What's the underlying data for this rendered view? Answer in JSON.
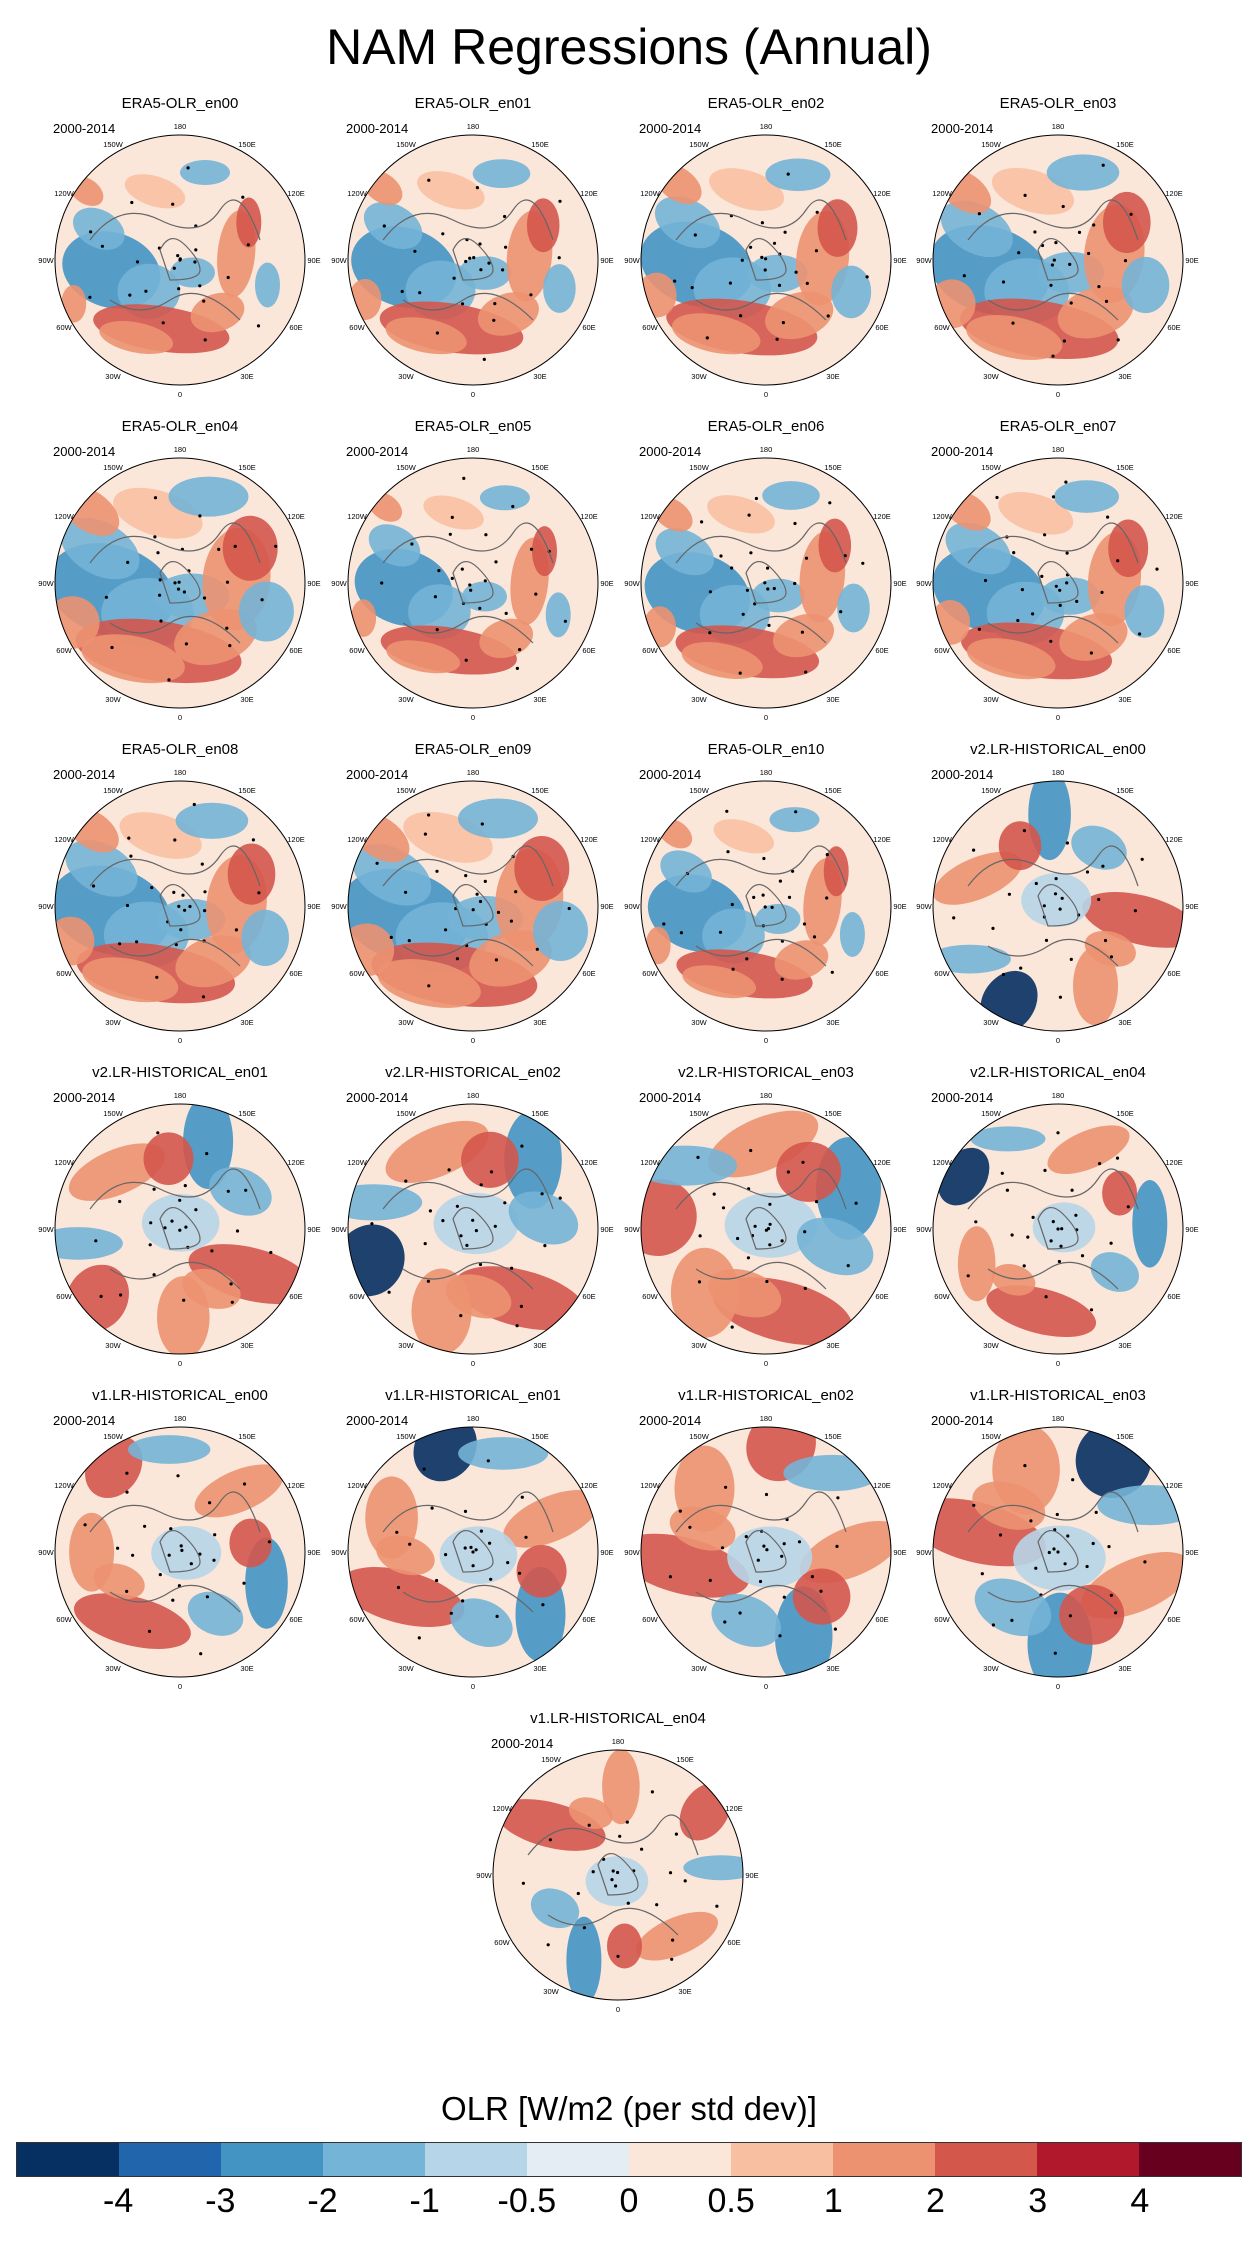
{
  "figure_title": "NAM Regressions (Annual)",
  "colorbar": {
    "title": "OLR [W/m2 (per std dev)]",
    "colors": [
      "#053061",
      "#2166ac",
      "#4393c3",
      "#74b4d6",
      "#b7d5e8",
      "#e3edf3",
      "#fbe6da",
      "#f8c0a1",
      "#ec9271",
      "#d4574c",
      "#b2182b",
      "#67001f"
    ],
    "ticks": [
      "-4",
      "-3",
      "-2",
      "-1",
      "-0.5",
      "0",
      "0.5",
      "1",
      "2",
      "3",
      "4"
    ]
  },
  "map_labels": {
    "top": "180",
    "bottom": "0",
    "left": "90W",
    "right": "90E",
    "ul1": "150W",
    "ul2": "120W",
    "ur1": "150E",
    "ur2": "120E",
    "ll1": "60W",
    "ll2": "30W",
    "lr1": "60E",
    "lr2": "30E"
  },
  "chart_data": {
    "type": "heatmap",
    "title": "NAM Regressions (Annual)",
    "variable": "OLR [W/m2 (per std dev)]",
    "projection": "polar stereographic (Northern Hemisphere)",
    "contour_levels": [
      -4,
      -3,
      -2,
      -1,
      -0.5,
      0,
      0.5,
      1,
      2,
      3,
      4
    ],
    "panels": [
      {
        "name": "ERA5-OLR_en00",
        "period": "2000-2014",
        "pattern": "era5"
      },
      {
        "name": "ERA5-OLR_en01",
        "period": "2000-2014",
        "pattern": "era5"
      },
      {
        "name": "ERA5-OLR_en02",
        "period": "2000-2014",
        "pattern": "era5"
      },
      {
        "name": "ERA5-OLR_en03",
        "period": "2000-2014",
        "pattern": "era5"
      },
      {
        "name": "ERA5-OLR_en04",
        "period": "2000-2014",
        "pattern": "era5"
      },
      {
        "name": "ERA5-OLR_en05",
        "period": "2000-2014",
        "pattern": "era5"
      },
      {
        "name": "ERA5-OLR_en06",
        "period": "2000-2014",
        "pattern": "era5"
      },
      {
        "name": "ERA5-OLR_en07",
        "period": "2000-2014",
        "pattern": "era5"
      },
      {
        "name": "ERA5-OLR_en08",
        "period": "2000-2014",
        "pattern": "era5"
      },
      {
        "name": "ERA5-OLR_en09",
        "period": "2000-2014",
        "pattern": "era5"
      },
      {
        "name": "ERA5-OLR_en10",
        "period": "2000-2014",
        "pattern": "era5"
      },
      {
        "name": "v2.LR-HISTORICAL_en00",
        "period": "2000-2014",
        "pattern": "model"
      },
      {
        "name": "v2.LR-HISTORICAL_en01",
        "period": "2000-2014",
        "pattern": "model"
      },
      {
        "name": "v2.LR-HISTORICAL_en02",
        "period": "2000-2014",
        "pattern": "model"
      },
      {
        "name": "v2.LR-HISTORICAL_en03",
        "period": "2000-2014",
        "pattern": "model"
      },
      {
        "name": "v2.LR-HISTORICAL_en04",
        "period": "2000-2014",
        "pattern": "model"
      },
      {
        "name": "v1.LR-HISTORICAL_en00",
        "period": "2000-2014",
        "pattern": "model"
      },
      {
        "name": "v1.LR-HISTORICAL_en01",
        "period": "2000-2014",
        "pattern": "model"
      },
      {
        "name": "v1.LR-HISTORICAL_en02",
        "period": "2000-2014",
        "pattern": "model"
      },
      {
        "name": "v1.LR-HISTORICAL_en03",
        "period": "2000-2014",
        "pattern": "model"
      },
      {
        "name": "v1.LR-HISTORICAL_en04",
        "period": "2000-2014",
        "pattern": "model"
      }
    ]
  }
}
